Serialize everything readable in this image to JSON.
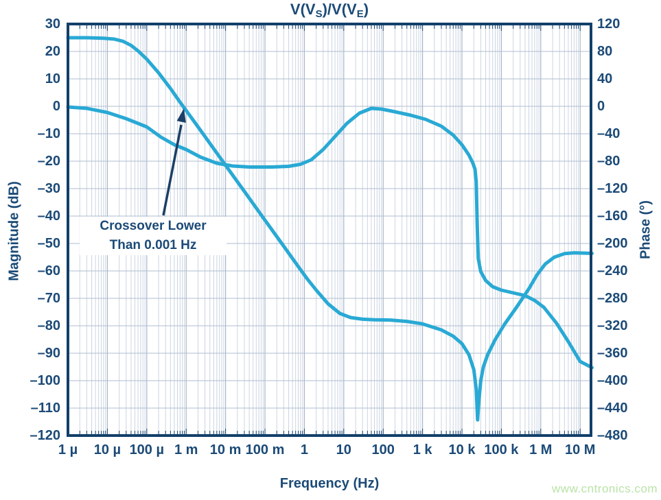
{
  "title": {
    "pre": "V(V",
    "sub1": "S",
    "mid": ")/V(V",
    "sub2": "E",
    "post": ")"
  },
  "axes": {
    "x": {
      "label": "Frequency (Hz)",
      "tick_labels": [
        "1 µ",
        "10 µ",
        "100 µ",
        "1 m",
        "10 m",
        "100 m",
        "1",
        "10",
        "100",
        "1 k",
        "10 k",
        "100 k",
        "1 M",
        "10 M"
      ]
    },
    "y_left": {
      "label": "Magnitude (dB)",
      "tick_labels": [
        "30",
        "20",
        "10",
        "0",
        "–10",
        "–20",
        "–30",
        "–40",
        "–50",
        "–60",
        "–70",
        "–80",
        "–90",
        "–100",
        "–110",
        "–120"
      ]
    },
    "y_right": {
      "label": "Phase (°)",
      "tick_labels": [
        "120",
        "80",
        "40",
        "0",
        "–40",
        "–80",
        "–120",
        "–160",
        "–200",
        "–240",
        "–280",
        "–320",
        "–360",
        "–400",
        "–440",
        "–480"
      ]
    }
  },
  "annotation": {
    "line1": "Crossover Lower",
    "line2": "Than 0.001 Hz"
  },
  "watermark": "www.cntronics.com",
  "colors": {
    "curve": "#29a9d4",
    "navy_text": "#1b4a77",
    "frame": "#123f6a",
    "grid_minor": "#ccd5e1",
    "grid_major": "#a6b4ca",
    "grid_horizontal": "#afbcd0",
    "arrow": "#1b3f66",
    "watermark_green": "#b9e3a6"
  },
  "chart_data": {
    "type": "line",
    "title": "V(V_S)/V(V_E)",
    "xlabel": "Frequency (Hz)",
    "x_scale": "log",
    "xlim": [
      1e-06,
      20000000.0
    ],
    "x_decade_ticks": [
      "1µ",
      "10µ",
      "100µ",
      "1m",
      "10m",
      "100m",
      "1",
      "10",
      "100",
      "1k",
      "10k",
      "100k",
      "1M",
      "10M"
    ],
    "grid": true,
    "legend": false,
    "y_left": {
      "label": "Magnitude (dB)",
      "lim": [
        -120,
        30
      ],
      "tick_step": 10
    },
    "y_right": {
      "label": "Phase (deg)",
      "lim": [
        -480,
        120
      ],
      "tick_step": 40
    },
    "annotation": "Crossover Lower Than 0.001 Hz (arrow points at 0 dB gain crossover near 0.0007 Hz)",
    "series": [
      {
        "name": "magnitude_dB",
        "axis": "left",
        "points": [
          [
            1e-06,
            25
          ],
          [
            3e-06,
            25
          ],
          [
            8e-06,
            24.8
          ],
          [
            1.5e-05,
            24.5
          ],
          [
            2.5e-05,
            23.7
          ],
          [
            4e-05,
            22.2
          ],
          [
            6e-05,
            20.2
          ],
          [
            0.0001,
            17.2
          ],
          [
            0.0002,
            12.2
          ],
          [
            0.0004,
            6.5
          ],
          [
            0.0007,
            1.5
          ],
          [
            0.0015,
            -5
          ],
          [
            0.003,
            -11
          ],
          [
            0.007,
            -18.4
          ],
          [
            0.015,
            -25
          ],
          [
            0.03,
            -31
          ],
          [
            0.07,
            -38.4
          ],
          [
            0.15,
            -45
          ],
          [
            0.3,
            -51
          ],
          [
            0.7,
            -58.4
          ],
          [
            1.2,
            -63
          ],
          [
            2,
            -67
          ],
          [
            4,
            -72
          ],
          [
            8,
            -75.5
          ],
          [
            15,
            -77
          ],
          [
            30,
            -77.6
          ],
          [
            60,
            -77.8
          ],
          [
            150,
            -77.9
          ],
          [
            400,
            -78.4
          ],
          [
            1000.0,
            -79.3
          ],
          [
            3000.0,
            -81.5
          ],
          [
            6000.0,
            -83.8
          ],
          [
            10000.0,
            -86.5
          ],
          [
            15000.0,
            -90.5
          ],
          [
            20000.0,
            -96
          ],
          [
            23000.0,
            -103
          ],
          [
            25000.0,
            -114.3
          ],
          [
            27000.0,
            -107
          ],
          [
            30000.0,
            -100
          ],
          [
            35000.0,
            -95
          ],
          [
            45000.0,
            -90.5
          ],
          [
            70000.0,
            -85
          ],
          [
            120000.0,
            -79.5
          ],
          [
            250000.0,
            -73
          ],
          [
            500000.0,
            -66.5
          ],
          [
            800000.0,
            -61.5
          ],
          [
            1300000.0,
            -57.5
          ],
          [
            2200000.0,
            -55
          ],
          [
            4000000.0,
            -53.7
          ],
          [
            7000000.0,
            -53.4
          ],
          [
            12000000.0,
            -53.5
          ],
          [
            20000000.0,
            -53.6
          ]
        ]
      },
      {
        "name": "phase_deg",
        "axis": "right",
        "points": [
          [
            1e-06,
            -1
          ],
          [
            3e-06,
            -3
          ],
          [
            1e-05,
            -9
          ],
          [
            3e-05,
            -18
          ],
          [
            0.0001,
            -30
          ],
          [
            0.00023,
            -45
          ],
          [
            0.0005,
            -56
          ],
          [
            0.001,
            -63
          ],
          [
            0.0023,
            -74
          ],
          [
            0.006,
            -83
          ],
          [
            0.015,
            -87
          ],
          [
            0.04,
            -88.5
          ],
          [
            0.15,
            -88.5
          ],
          [
            0.4,
            -87.5
          ],
          [
            0.8,
            -84.5
          ],
          [
            1.5,
            -78
          ],
          [
            3,
            -63
          ],
          [
            6,
            -44
          ],
          [
            12,
            -25
          ],
          [
            25,
            -10
          ],
          [
            50,
            -3
          ],
          [
            90,
            -4
          ],
          [
            200,
            -8
          ],
          [
            500,
            -13
          ],
          [
            1200.0,
            -19
          ],
          [
            3000.0,
            -29
          ],
          [
            6000.0,
            -42
          ],
          [
            10000.0,
            -56
          ],
          [
            15000.0,
            -71
          ],
          [
            19000.0,
            -83
          ],
          [
            21500.0,
            -92
          ],
          [
            23000.0,
            -110
          ],
          [
            24500.0,
            -175
          ],
          [
            26000.0,
            -222
          ],
          [
            30000.0,
            -241
          ],
          [
            40000.0,
            -254
          ],
          [
            60000.0,
            -263
          ],
          [
            100000.0,
            -268
          ],
          [
            200000.0,
            -272
          ],
          [
            400000.0,
            -276
          ],
          [
            700000.0,
            -283
          ],
          [
            1200000.0,
            -293
          ],
          [
            2500000.0,
            -316
          ],
          [
            5000000.0,
            -343
          ],
          [
            10000000.0,
            -372
          ],
          [
            20000000.0,
            -381
          ]
        ]
      }
    ]
  }
}
